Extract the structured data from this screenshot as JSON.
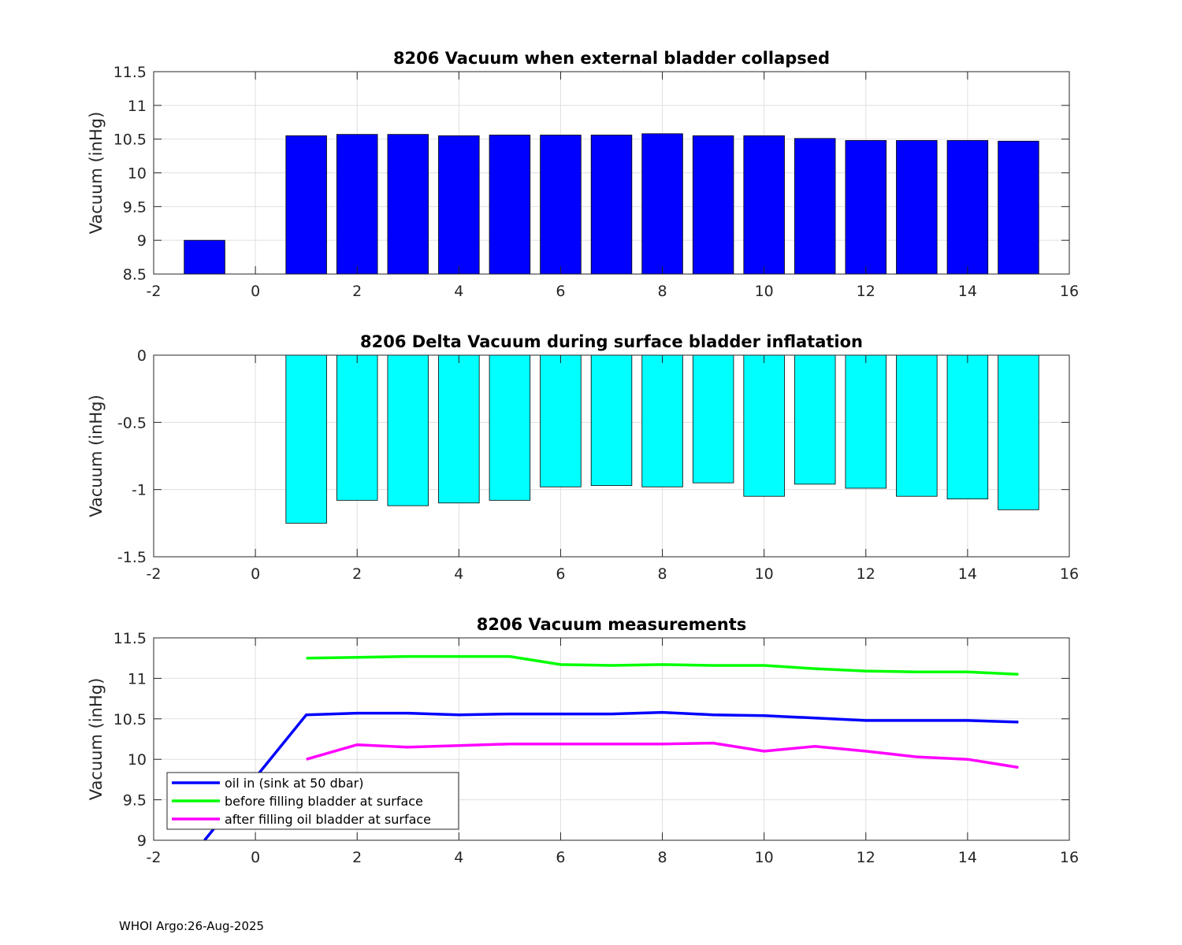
{
  "footer": "WHOI Argo:26-Aug-2025",
  "chart_data": [
    {
      "type": "bar",
      "title": "8206 Vacuum when external bladder collapsed",
      "ylabel": "Vacuum (inHg)",
      "xlim": [
        -2,
        16
      ],
      "ylim": [
        8.5,
        11.5
      ],
      "xticks": [
        -2,
        0,
        2,
        4,
        6,
        8,
        10,
        12,
        14,
        16
      ],
      "yticks": [
        8.5,
        9,
        9.5,
        10,
        10.5,
        11,
        11.5
      ],
      "ytick_labels": [
        "8.5",
        "9",
        "9.5",
        "10",
        "10.5",
        "11",
        "11.5"
      ],
      "color": "#0000ff",
      "grid": true,
      "x": [
        -1,
        1,
        2,
        3,
        4,
        5,
        6,
        7,
        8,
        9,
        10,
        11,
        12,
        13,
        14,
        15
      ],
      "values": [
        9.0,
        10.55,
        10.57,
        10.57,
        10.55,
        10.56,
        10.56,
        10.56,
        10.58,
        10.55,
        10.55,
        10.51,
        10.48,
        10.48,
        10.48,
        10.47
      ]
    },
    {
      "type": "bar",
      "title": "8206 Delta Vacuum during surface bladder inflatation",
      "ylabel": "Vacuum (inHg)",
      "xlim": [
        -2,
        16
      ],
      "ylim": [
        -1.5,
        0
      ],
      "xticks": [
        -2,
        0,
        2,
        4,
        6,
        8,
        10,
        12,
        14,
        16
      ],
      "yticks": [
        -1.5,
        -1,
        -0.5,
        0
      ],
      "ytick_labels": [
        "-1.5",
        "-1",
        "-0.5",
        "0"
      ],
      "color": "#00ffff",
      "grid": true,
      "x": [
        1,
        2,
        3,
        4,
        5,
        6,
        7,
        8,
        9,
        10,
        11,
        12,
        13,
        14,
        15
      ],
      "values": [
        -1.25,
        -1.08,
        -1.12,
        -1.1,
        -1.08,
        -0.98,
        -0.97,
        -0.98,
        -0.95,
        -1.05,
        -0.96,
        -0.99,
        -1.05,
        -1.07,
        -1.15
      ]
    },
    {
      "type": "line",
      "title": "8206 Vacuum measurements",
      "ylabel": "Vacuum (inHg)",
      "xlim": [
        -2,
        16
      ],
      "ylim": [
        9,
        11.5
      ],
      "xticks": [
        -2,
        0,
        2,
        4,
        6,
        8,
        10,
        12,
        14,
        16
      ],
      "yticks": [
        9,
        9.5,
        10,
        10.5,
        11,
        11.5
      ],
      "ytick_labels": [
        "9",
        "9.5",
        "10",
        "10.5",
        "11",
        "11.5"
      ],
      "grid": true,
      "legend_position": "bottom-left",
      "series": [
        {
          "name": "oil in (sink at 50 dbar)",
          "color": "#0000ff",
          "x": [
            -1,
            1,
            2,
            3,
            4,
            5,
            6,
            7,
            8,
            9,
            10,
            11,
            12,
            13,
            14,
            15
          ],
          "values": [
            9.0,
            10.55,
            10.57,
            10.57,
            10.55,
            10.56,
            10.56,
            10.56,
            10.58,
            10.55,
            10.54,
            10.51,
            10.48,
            10.48,
            10.48,
            10.46
          ]
        },
        {
          "name": "before filling bladder at surface",
          "color": "#00ff00",
          "x": [
            1,
            2,
            3,
            4,
            5,
            6,
            7,
            8,
            9,
            10,
            11,
            12,
            13,
            14,
            15
          ],
          "values": [
            11.25,
            11.26,
            11.27,
            11.27,
            11.27,
            11.17,
            11.16,
            11.17,
            11.16,
            11.16,
            11.12,
            11.09,
            11.08,
            11.08,
            11.05
          ]
        },
        {
          "name": "after filling oil bladder at surface",
          "color": "#ff00ff",
          "x": [
            1,
            2,
            3,
            4,
            5,
            6,
            7,
            8,
            9,
            10,
            11,
            12,
            13,
            14,
            15
          ],
          "values": [
            10.0,
            10.18,
            10.15,
            10.17,
            10.19,
            10.19,
            10.19,
            10.19,
            10.2,
            10.1,
            10.16,
            10.1,
            10.03,
            10.0,
            9.9
          ]
        }
      ]
    }
  ]
}
